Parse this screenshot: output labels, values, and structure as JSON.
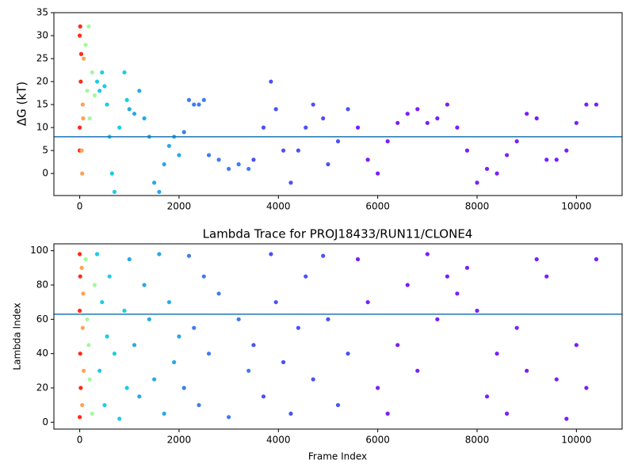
{
  "chart_data": [
    {
      "type": "scatter",
      "ylabel": "ΔG (kT)",
      "xlim": [
        -520,
        10920
      ],
      "ylim": [
        -4.8,
        35
      ],
      "xticks": [
        0,
        2000,
        4000,
        6000,
        8000,
        10000
      ],
      "yticks": [
        0,
        5,
        10,
        15,
        20,
        25,
        30,
        35
      ],
      "hline": 8,
      "hline_color": "#1f77b4",
      "series": [
        {
          "color": "#ff2a15",
          "x": [
            0,
            0,
            10,
            20,
            30,
            0
          ],
          "y": [
            30,
            10,
            32,
            20,
            26,
            5
          ]
        },
        {
          "color": "#ffa256",
          "x": [
            40,
            60,
            80,
            50,
            70
          ],
          "y": [
            5,
            15,
            25,
            0,
            12
          ]
        },
        {
          "color": "#a4f89f",
          "x": [
            120,
            150,
            200,
            250,
            300,
            180
          ],
          "y": [
            28,
            18,
            12,
            22,
            17,
            32
          ]
        },
        {
          "color": "#1ccce4",
          "x": [
            350,
            400,
            450,
            500,
            550,
            600,
            650,
            700,
            800,
            900,
            950
          ],
          "y": [
            20,
            18,
            22,
            19,
            15,
            8,
            0,
            -4,
            10,
            22,
            16
          ]
        },
        {
          "color": "#2aa8e8",
          "x": [
            1000,
            1100,
            1200,
            1300,
            1400,
            1500,
            1600,
            1700,
            1800,
            1900,
            2000
          ],
          "y": [
            14,
            13,
            18,
            12,
            8,
            -2,
            -4,
            2,
            6,
            8,
            4
          ]
        },
        {
          "color": "#3f7cf3",
          "x": [
            2100,
            2200,
            2300,
            2400,
            2500,
            2600,
            2800,
            3000,
            3200,
            3400
          ],
          "y": [
            9,
            16,
            15,
            15,
            16,
            4,
            3,
            1,
            2,
            1
          ]
        },
        {
          "color": "#4a52f5",
          "x": [
            3500,
            3700,
            3850,
            3950,
            4100,
            4250,
            4400,
            4550,
            4700,
            4900,
            5000,
            5200,
            5400
          ],
          "y": [
            3,
            10,
            20,
            14,
            5,
            -2,
            5,
            10,
            15,
            12,
            2,
            7,
            14
          ]
        },
        {
          "color": "#7a1ffa",
          "x": [
            5600,
            5800,
            6000,
            6200,
            6400,
            6600,
            6800,
            7000,
            7200,
            7400,
            7600,
            7800,
            8000,
            8200,
            8400,
            8600,
            8800,
            9000,
            9200,
            9400,
            9600,
            9800,
            10000,
            10200,
            10400
          ],
          "y": [
            10,
            3,
            0,
            7,
            11,
            13,
            14,
            11,
            12,
            15,
            10,
            5,
            -2,
            1,
            0,
            4,
            7,
            13,
            12,
            3,
            3,
            5,
            11,
            15,
            15
          ]
        }
      ]
    },
    {
      "type": "scatter",
      "title": "Lambda Trace for PROJ18433/RUN11/CLONE4",
      "xlabel": "Frame Index",
      "ylabel": "Lambda Index",
      "xlim": [
        -520,
        10920
      ],
      "ylim": [
        -4,
        104
      ],
      "xticks": [
        0,
        2000,
        4000,
        6000,
        8000,
        10000
      ],
      "yticks": [
        0,
        20,
        40,
        60,
        80,
        100
      ],
      "hline": 63,
      "hline_color": "#1f77b4",
      "series": [
        {
          "color": "#ff2a15",
          "x": [
            0,
            0,
            10,
            20,
            0,
            10
          ],
          "y": [
            98,
            65,
            40,
            20,
            3,
            85
          ]
        },
        {
          "color": "#ffa256",
          "x": [
            40,
            60,
            80,
            50,
            70
          ],
          "y": [
            90,
            55,
            30,
            10,
            75
          ]
        },
        {
          "color": "#a4f89f",
          "x": [
            120,
            150,
            200,
            250,
            300,
            180
          ],
          "y": [
            95,
            60,
            25,
            5,
            80,
            45
          ]
        },
        {
          "color": "#1ccce4",
          "x": [
            350,
            400,
            450,
            500,
            550,
            600,
            700,
            800,
            900,
            950
          ],
          "y": [
            98,
            30,
            70,
            10,
            50,
            85,
            40,
            2,
            65,
            20
          ]
        },
        {
          "color": "#2aa8e8",
          "x": [
            1000,
            1100,
            1200,
            1300,
            1400,
            1500,
            1600,
            1700,
            1800,
            1900,
            2000
          ],
          "y": [
            95,
            45,
            15,
            80,
            60,
            25,
            98,
            5,
            70,
            35,
            50
          ]
        },
        {
          "color": "#3f7cf3",
          "x": [
            2100,
            2200,
            2300,
            2400,
            2500,
            2600,
            2800,
            3000,
            3200,
            3400
          ],
          "y": [
            20,
            97,
            55,
            10,
            85,
            40,
            75,
            3,
            60,
            30
          ]
        },
        {
          "color": "#4a52f5",
          "x": [
            3500,
            3700,
            3850,
            3950,
            4100,
            4250,
            4400,
            4550,
            4700,
            4900,
            5000,
            5200,
            5400
          ],
          "y": [
            45,
            15,
            98,
            70,
            35,
            5,
            55,
            85,
            25,
            97,
            60,
            10,
            40
          ]
        },
        {
          "color": "#7a1ffa",
          "x": [
            5600,
            5800,
            6000,
            6200,
            6400,
            6600,
            6800,
            7000,
            7200,
            7400,
            7600,
            7800,
            8000,
            8200,
            8400,
            8600,
            8800,
            9000,
            9200,
            9400,
            9600,
            9800,
            10000,
            10200,
            10400
          ],
          "y": [
            95,
            70,
            20,
            5,
            45,
            80,
            30,
            98,
            60,
            85,
            75,
            90,
            65,
            15,
            40,
            5,
            55,
            30,
            95,
            85,
            25,
            2,
            45,
            20,
            95
          ]
        }
      ]
    }
  ]
}
